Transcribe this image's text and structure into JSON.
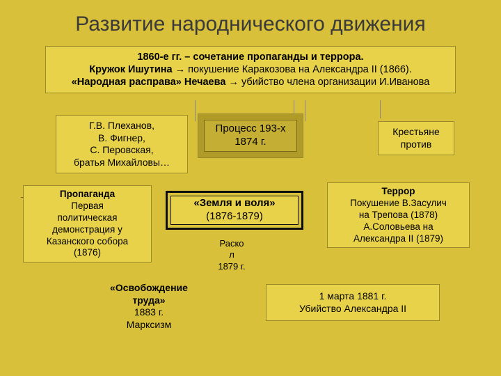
{
  "colors": {
    "background": "#d8c03a",
    "box_fill": "#e8d24a",
    "process_fill": "#c4ae34",
    "title_color": "#3a3a3a"
  },
  "title": "Развитие  народнического движения",
  "top": {
    "line1_bold": "1860-е гг. – сочетание пропаганды и террора.",
    "line2_bold": "Кружок Ишутина",
    "line2_rest": " → покушение Каракозова на Александра II (1866).",
    "line3_bold": "«Народная расправа» Нечаева",
    "line3_rest": " → убийство члена организации И.Иванова"
  },
  "people": {
    "l1": "Г.В. Плеханов,",
    "l2": "В. Фигнер,",
    "l3": "С. Перовская,",
    "l4": "братья Михайловы…"
  },
  "process": {
    "l1": "Процесс 193-х",
    "l2": "1874 г."
  },
  "peasants": {
    "l1": "Крестьяне",
    "l2": "против"
  },
  "prop": {
    "title": "Пропаганда",
    "l1": "Первая",
    "l2": "политическая",
    "l3": "демонстрация у",
    "l4": "Казанского собора",
    "l5": "(1876)"
  },
  "zemlya": {
    "l1": "«Земля и воля»",
    "l2": "(1876-1879)"
  },
  "terror": {
    "title": "Террор",
    "l1": "Покушение В.Засулич",
    "l2": "на Трепова (1878)",
    "l3": "А.Соловьева на",
    "l4": "Александра II (1879)"
  },
  "raskol": {
    "l1": "Раско",
    "l2": "л",
    "l3": "1879 г."
  },
  "osv": {
    "l1": "«Освобождение",
    "l2": "труда»",
    "l3": "1883 г.",
    "l4": "Марксизм"
  },
  "mar1881": {
    "l1": "1 марта 1881 г.",
    "l2": "Убийство Александра II"
  }
}
